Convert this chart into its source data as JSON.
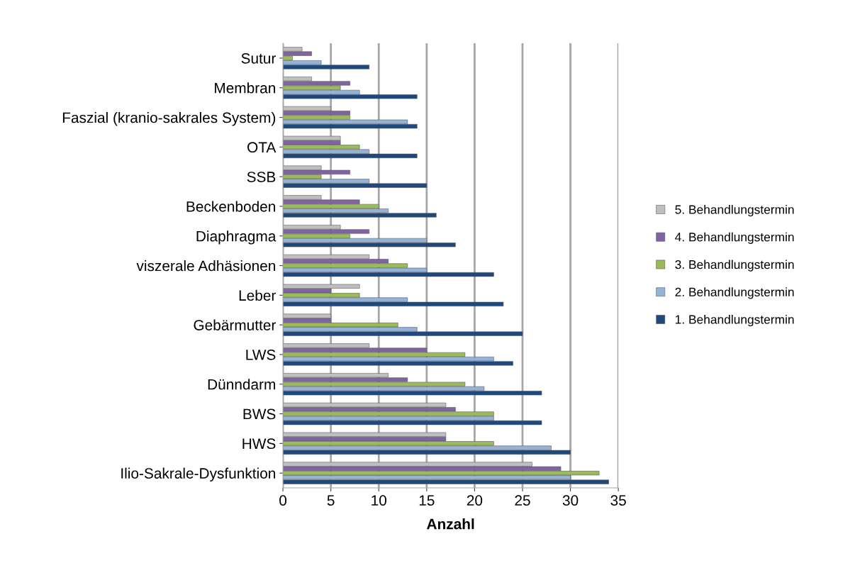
{
  "chart_data": {
    "type": "bar",
    "orientation": "horizontal",
    "xlabel": "Anzahl",
    "categories": [
      "Sutur",
      "Membran",
      "Faszial (kranio-sakrales System)",
      "OTA",
      "SSB",
      "Beckenboden",
      "Diaphragma",
      "viszerale Adhäsionen",
      "Leber",
      "Gebärmutter",
      "LWS",
      "Dünndarm",
      "BWS",
      "HWS",
      "Ilio-Sakrale-Dysfunktion"
    ],
    "series": [
      {
        "name": "1. Behandlungstermin",
        "color": "#1f497d",
        "values": [
          9,
          14,
          14,
          14,
          15,
          16,
          18,
          22,
          23,
          25,
          24,
          27,
          27,
          30,
          34
        ]
      },
      {
        "name": "2. Behandlungstermin",
        "color": "#95b3d7",
        "values": [
          4,
          8,
          13,
          9,
          9,
          11,
          15,
          15,
          13,
          14,
          22,
          21,
          22,
          28,
          30
        ]
      },
      {
        "name": "3. Behandlungstermin",
        "color": "#9bbb59",
        "values": [
          1,
          6,
          7,
          8,
          4,
          10,
          7,
          13,
          8,
          12,
          19,
          19,
          22,
          22,
          33
        ]
      },
      {
        "name": "4. Behandlungstermin",
        "color": "#8064a2",
        "values": [
          3,
          7,
          7,
          6,
          7,
          8,
          9,
          11,
          5,
          5,
          15,
          13,
          18,
          17,
          29
        ]
      },
      {
        "name": "5. Behandlungstermin",
        "color": "#bfbfbf",
        "values": [
          2,
          3,
          5,
          6,
          4,
          4,
          6,
          9,
          8,
          5,
          9,
          11,
          17,
          17,
          26
        ]
      }
    ],
    "xlim": [
      0,
      35
    ],
    "xticks": [
      0,
      5,
      10,
      15,
      20,
      25,
      30,
      35
    ],
    "grid": "x",
    "legend": "right"
  }
}
